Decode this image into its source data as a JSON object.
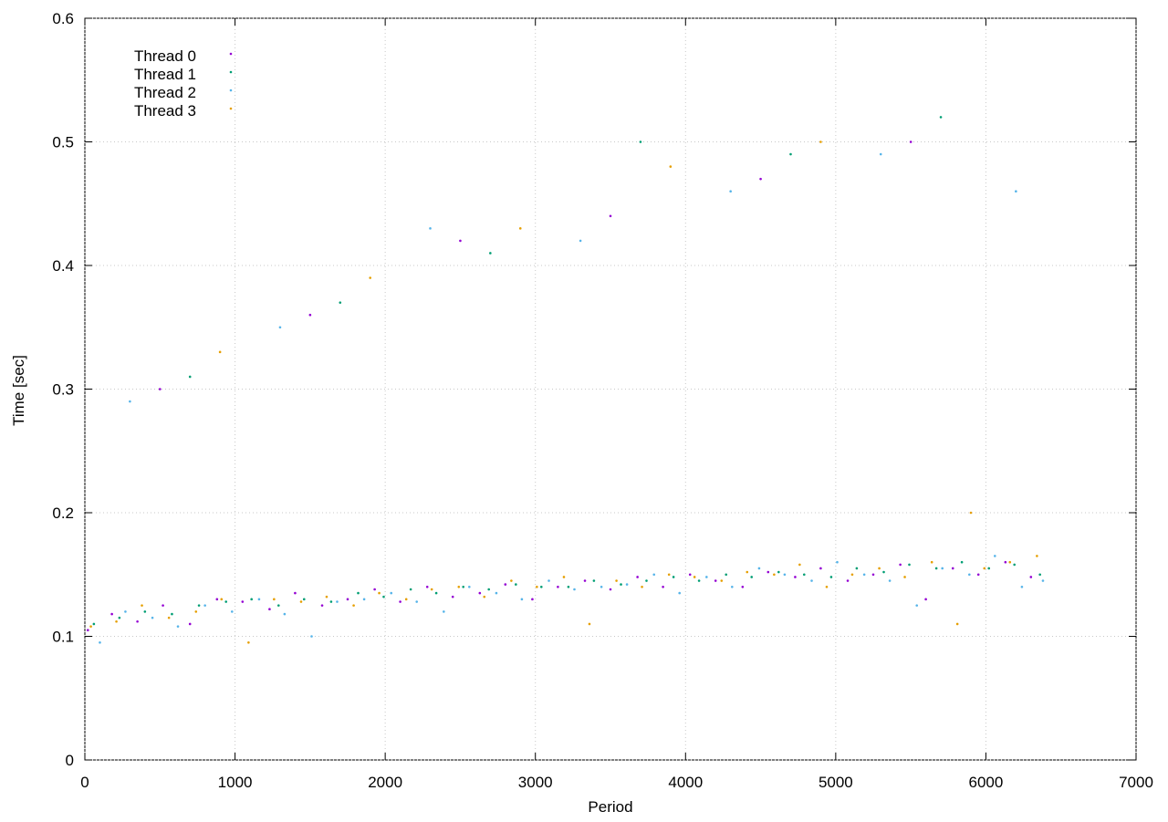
{
  "chart_data": {
    "type": "scatter",
    "xlabel": "Period",
    "ylabel": "Time [sec]",
    "xlim": [
      0,
      7000
    ],
    "ylim": [
      0,
      0.6
    ],
    "xticks": [
      0,
      1000,
      2000,
      3000,
      4000,
      5000,
      6000,
      7000
    ],
    "yticks": [
      0,
      0.1,
      0.2,
      0.3,
      0.4,
      0.5,
      0.6
    ],
    "grid": true,
    "legend": "upper-left",
    "series": [
      {
        "name": "Thread 0",
        "color": "#9400d3",
        "x": [
          20,
          180,
          350,
          520,
          700,
          880,
          1050,
          1230,
          1400,
          1580,
          1750,
          1930,
          2100,
          2280,
          2450,
          2630,
          2800,
          2980,
          3150,
          3330,
          3500,
          3680,
          3850,
          4030,
          4200,
          4380,
          4550,
          4730,
          4900,
          5080,
          5250,
          5430,
          5600,
          5780,
          5950,
          6130,
          6300,
          500,
          1500,
          2500,
          3500,
          4500,
          5500
        ],
        "values": [
          0.105,
          0.118,
          0.112,
          0.125,
          0.11,
          0.13,
          0.128,
          0.122,
          0.135,
          0.125,
          0.13,
          0.138,
          0.128,
          0.14,
          0.132,
          0.135,
          0.142,
          0.13,
          0.14,
          0.145,
          0.138,
          0.148,
          0.14,
          0.15,
          0.145,
          0.14,
          0.152,
          0.148,
          0.155,
          0.145,
          0.15,
          0.158,
          0.13,
          0.155,
          0.15,
          0.16,
          0.148,
          0.3,
          0.36,
          0.42,
          0.44,
          0.47,
          0.5
        ]
      },
      {
        "name": "Thread 1",
        "color": "#009e73",
        "x": [
          60,
          230,
          400,
          580,
          760,
          940,
          1110,
          1290,
          1460,
          1640,
          1820,
          1990,
          2170,
          2340,
          2520,
          2690,
          2870,
          3040,
          3220,
          3390,
          3570,
          3740,
          3920,
          4090,
          4270,
          4440,
          4620,
          4790,
          4970,
          5140,
          5320,
          5490,
          5670,
          5840,
          6020,
          6190,
          6360,
          700,
          1700,
          2700,
          3700,
          4700,
          5700
        ],
        "values": [
          0.11,
          0.115,
          0.12,
          0.118,
          0.125,
          0.128,
          0.13,
          0.125,
          0.13,
          0.128,
          0.135,
          0.132,
          0.138,
          0.135,
          0.14,
          0.138,
          0.142,
          0.14,
          0.14,
          0.145,
          0.142,
          0.145,
          0.148,
          0.145,
          0.15,
          0.148,
          0.152,
          0.15,
          0.148,
          0.155,
          0.152,
          0.158,
          0.155,
          0.16,
          0.155,
          0.158,
          0.15,
          0.31,
          0.37,
          0.41,
          0.5,
          0.49,
          0.52
        ]
      },
      {
        "name": "Thread 2",
        "color": "#56b4e9",
        "x": [
          100,
          270,
          450,
          620,
          800,
          980,
          1160,
          1330,
          1510,
          1680,
          1860,
          2040,
          2210,
          2390,
          2560,
          2740,
          2910,
          3090,
          3260,
          3440,
          3610,
          3790,
          3960,
          4140,
          4310,
          4490,
          4660,
          4840,
          5010,
          5190,
          5360,
          5540,
          5710,
          5890,
          6060,
          6240,
          6380,
          300,
          1300,
          2300,
          3300,
          4300,
          5300,
          6200
        ],
        "values": [
          0.095,
          0.12,
          0.115,
          0.108,
          0.125,
          0.12,
          0.13,
          0.118,
          0.1,
          0.128,
          0.13,
          0.135,
          0.128,
          0.12,
          0.14,
          0.135,
          0.13,
          0.145,
          0.138,
          0.14,
          0.142,
          0.15,
          0.135,
          0.148,
          0.14,
          0.155,
          0.15,
          0.145,
          0.16,
          0.15,
          0.145,
          0.125,
          0.155,
          0.15,
          0.165,
          0.14,
          0.145,
          0.29,
          0.35,
          0.43,
          0.42,
          0.46,
          0.49,
          0.46
        ]
      },
      {
        "name": "Thread 3",
        "color": "#e69f00",
        "x": [
          40,
          210,
          380,
          560,
          740,
          910,
          1090,
          1260,
          1440,
          1610,
          1790,
          1960,
          2140,
          2310,
          2490,
          2660,
          2840,
          3010,
          3190,
          3360,
          3540,
          3710,
          3890,
          4060,
          4240,
          4410,
          4590,
          4760,
          4940,
          5110,
          5290,
          5460,
          5640,
          5810,
          5990,
          6160,
          6340,
          900,
          1900,
          2900,
          3900,
          4900,
          5900
        ],
        "values": [
          0.108,
          0.112,
          0.125,
          0.115,
          0.12,
          0.13,
          0.095,
          0.13,
          0.128,
          0.132,
          0.125,
          0.135,
          0.13,
          0.138,
          0.14,
          0.132,
          0.145,
          0.14,
          0.148,
          0.11,
          0.145,
          0.14,
          0.15,
          0.148,
          0.145,
          0.152,
          0.15,
          0.158,
          0.14,
          0.15,
          0.155,
          0.148,
          0.16,
          0.11,
          0.155,
          0.16,
          0.165,
          0.33,
          0.39,
          0.43,
          0.48,
          0.5,
          0.2
        ]
      }
    ]
  }
}
